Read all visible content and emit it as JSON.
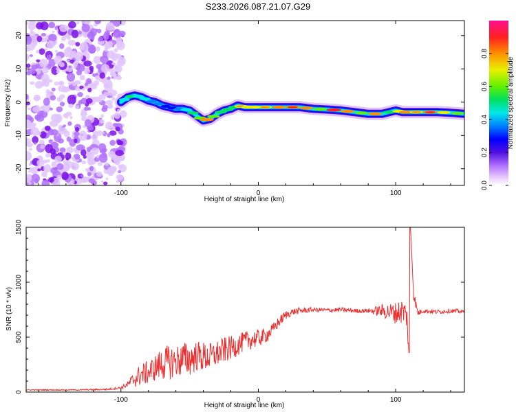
{
  "title": "S233.2026.087.21.07.G29",
  "chart_data": [
    {
      "type": "heatmap",
      "name": "spectrogram",
      "xlabel": "Height of straight line (km)",
      "ylabel": "Frequency (Hz)",
      "xlim": [
        -169,
        150
      ],
      "ylim": [
        -25,
        24.5
      ],
      "xticks": [
        -100,
        0,
        100
      ],
      "yticks": [
        -20,
        -10,
        0,
        10,
        20
      ],
      "colorbar": {
        "label": "Normalized spectral amplitude",
        "range": [
          0,
          1
        ],
        "ticks": [
          "0.0",
          "0.2",
          "0.4",
          "0.6",
          "0.8"
        ],
        "tick_values": [
          0,
          0.2,
          0.4,
          0.6,
          0.8
        ],
        "colors": [
          "#ffffff",
          "#e8c8ff",
          "#b070ff",
          "#5010e0",
          "#0000ff",
          "#0080ff",
          "#00e8e8",
          "#00e060",
          "#60f000",
          "#e8f000",
          "#ff9000",
          "#ff2020",
          "#ff1090"
        ]
      },
      "noise_region_x": [
        -169,
        -98
      ],
      "ridge": {
        "x": [
          -100,
          -95,
          -90,
          -85,
          -80,
          -75,
          -70,
          -65,
          -60,
          -55,
          -50,
          -45,
          -40,
          -35,
          -30,
          -25,
          -20,
          -15,
          -10,
          -5,
          0,
          10,
          20,
          30,
          40,
          50,
          60,
          70,
          80,
          90,
          100,
          105,
          110,
          120,
          130,
          140,
          150
        ],
        "freq": [
          0,
          1.5,
          2,
          1.5,
          0.5,
          0,
          -1,
          -1.5,
          -2,
          -2,
          -2.5,
          -4,
          -5.5,
          -5,
          -3.5,
          -2.5,
          -2,
          -1,
          -1.5,
          -1.5,
          -1.5,
          -1.5,
          -1.5,
          -1.5,
          -2,
          -2.2,
          -2.5,
          -3,
          -3.5,
          -3.5,
          -2.5,
          -3,
          -3,
          -3,
          -3,
          -3.2,
          -3.5
        ],
        "amplitude": [
          0.5,
          0.6,
          0.55,
          0.5,
          0.45,
          0.4,
          0.35,
          0.35,
          0.4,
          0.55,
          0.6,
          0.7,
          0.85,
          0.7,
          0.6,
          0.6,
          0.65,
          0.8,
          0.75,
          0.75,
          0.8,
          0.85,
          0.9,
          0.85,
          0.7,
          0.95,
          0.85,
          0.7,
          0.85,
          0.6,
          0.75,
          0.85,
          0.8,
          0.9,
          0.75,
          0.7,
          0.6
        ]
      }
    },
    {
      "type": "line",
      "name": "snr",
      "xlabel": "Height of straight line (km)",
      "ylabel": "SNR (10 * v/v)",
      "xlim": [
        -169,
        150
      ],
      "ylim": [
        0,
        1500
      ],
      "xticks": [
        -100,
        0,
        100
      ],
      "yticks": [
        0,
        500,
        1000,
        1500
      ],
      "series": [
        {
          "name": "SNR",
          "color": "#e83030",
          "x": [
            -169,
            -150,
            -130,
            -110,
            -100,
            -95,
            -90,
            -85,
            -80,
            -75,
            -70,
            -65,
            -60,
            -55,
            -50,
            -45,
            -40,
            -35,
            -30,
            -25,
            -20,
            -15,
            -10,
            -5,
            0,
            5,
            10,
            15,
            20,
            25,
            30,
            40,
            50,
            60,
            70,
            80,
            90,
            95,
            100,
            105,
            108,
            110,
            111,
            113,
            116,
            120,
            130,
            140,
            150
          ],
          "y": [
            20,
            20,
            20,
            25,
            40,
            70,
            120,
            160,
            180,
            220,
            260,
            270,
            280,
            300,
            300,
            330,
            320,
            320,
            350,
            380,
            400,
            430,
            460,
            480,
            490,
            510,
            560,
            640,
            700,
            730,
            740,
            750,
            745,
            750,
            740,
            740,
            740,
            730,
            720,
            740,
            700,
            300,
            1450,
            900,
            720,
            740,
            730,
            740,
            730
          ],
          "noise": [
            5,
            5,
            5,
            8,
            12,
            30,
            80,
            100,
            110,
            120,
            150,
            160,
            150,
            160,
            160,
            140,
            140,
            130,
            120,
            120,
            110,
            100,
            90,
            90,
            80,
            70,
            60,
            50,
            40,
            30,
            30,
            20,
            20,
            20,
            20,
            20,
            60,
            80,
            100,
            120,
            120,
            80,
            0,
            60,
            30,
            20,
            20,
            20,
            20
          ]
        }
      ]
    }
  ]
}
